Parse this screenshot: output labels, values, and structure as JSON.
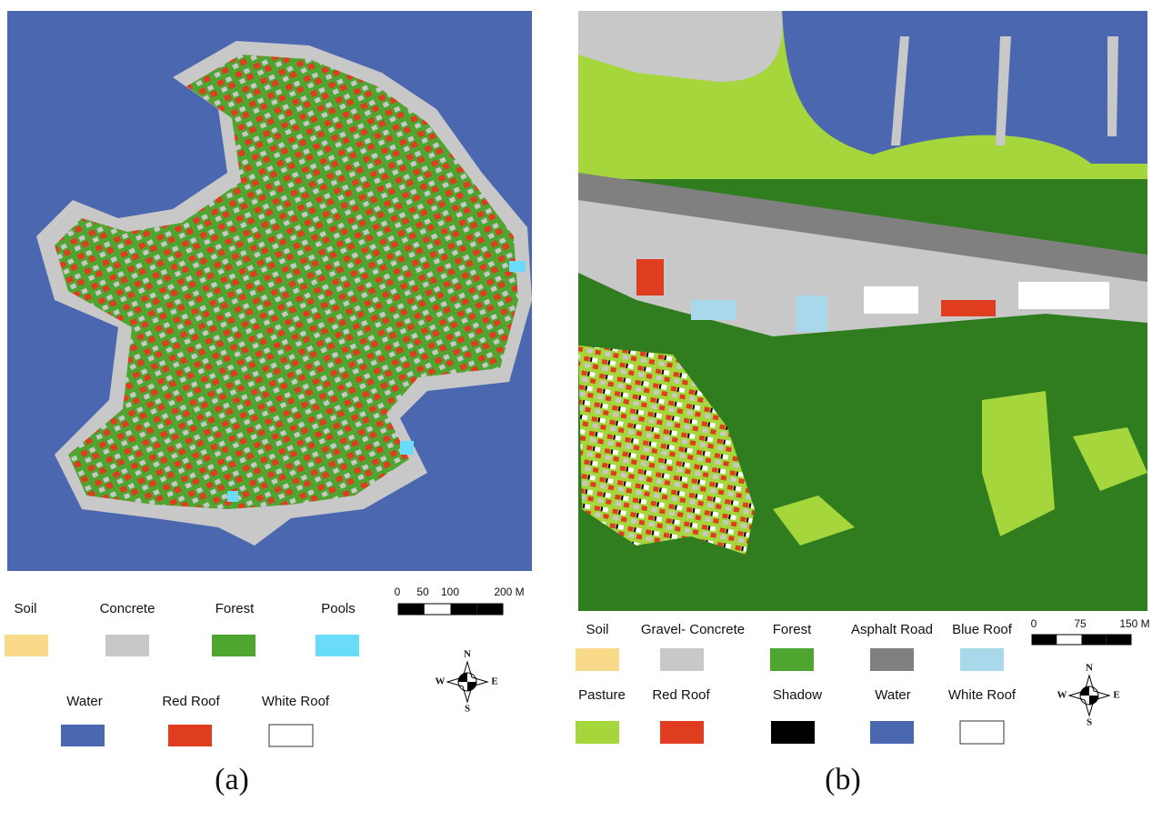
{
  "panels": [
    {
      "caption": "(a)",
      "legend": [
        {
          "label": "Soil",
          "color": "#f9d98a"
        },
        {
          "label": "Concrete",
          "color": "#c8c8c8"
        },
        {
          "label": "Forest",
          "color": "#4ea631"
        },
        {
          "label": "Pools",
          "color": "#6adcfa"
        },
        {
          "label": "Water",
          "color": "#4a67b0"
        },
        {
          "label": "Red Roof",
          "color": "#e03c1f"
        },
        {
          "label": "White Roof",
          "color": "#ffffff"
        }
      ],
      "scale": [
        "0",
        "50",
        "100",
        "200 M"
      ],
      "compass": [
        "N",
        "E",
        "S",
        "W"
      ]
    },
    {
      "caption": "(b)",
      "legend": [
        {
          "label": "Soil",
          "color": "#f9d98a"
        },
        {
          "label": "Gravel- Concrete",
          "color": "#c8c8c8"
        },
        {
          "label": "Forest",
          "color": "#4ea631"
        },
        {
          "label": "Asphalt Road",
          "color": "#808080"
        },
        {
          "label": "Blue Roof",
          "color": "#a8d8ea"
        },
        {
          "label": "Pasture",
          "color": "#a5d63c"
        },
        {
          "label": "Red Roof",
          "color": "#e03c1f"
        },
        {
          "label": "Shadow",
          "color": "#000000"
        },
        {
          "label": "Water",
          "color": "#4a67b0"
        },
        {
          "label": "White Roof",
          "color": "#ffffff"
        }
      ],
      "scale": [
        "0",
        "75",
        "150 M"
      ],
      "compass": [
        "N",
        "E",
        "S",
        "W"
      ]
    }
  ]
}
